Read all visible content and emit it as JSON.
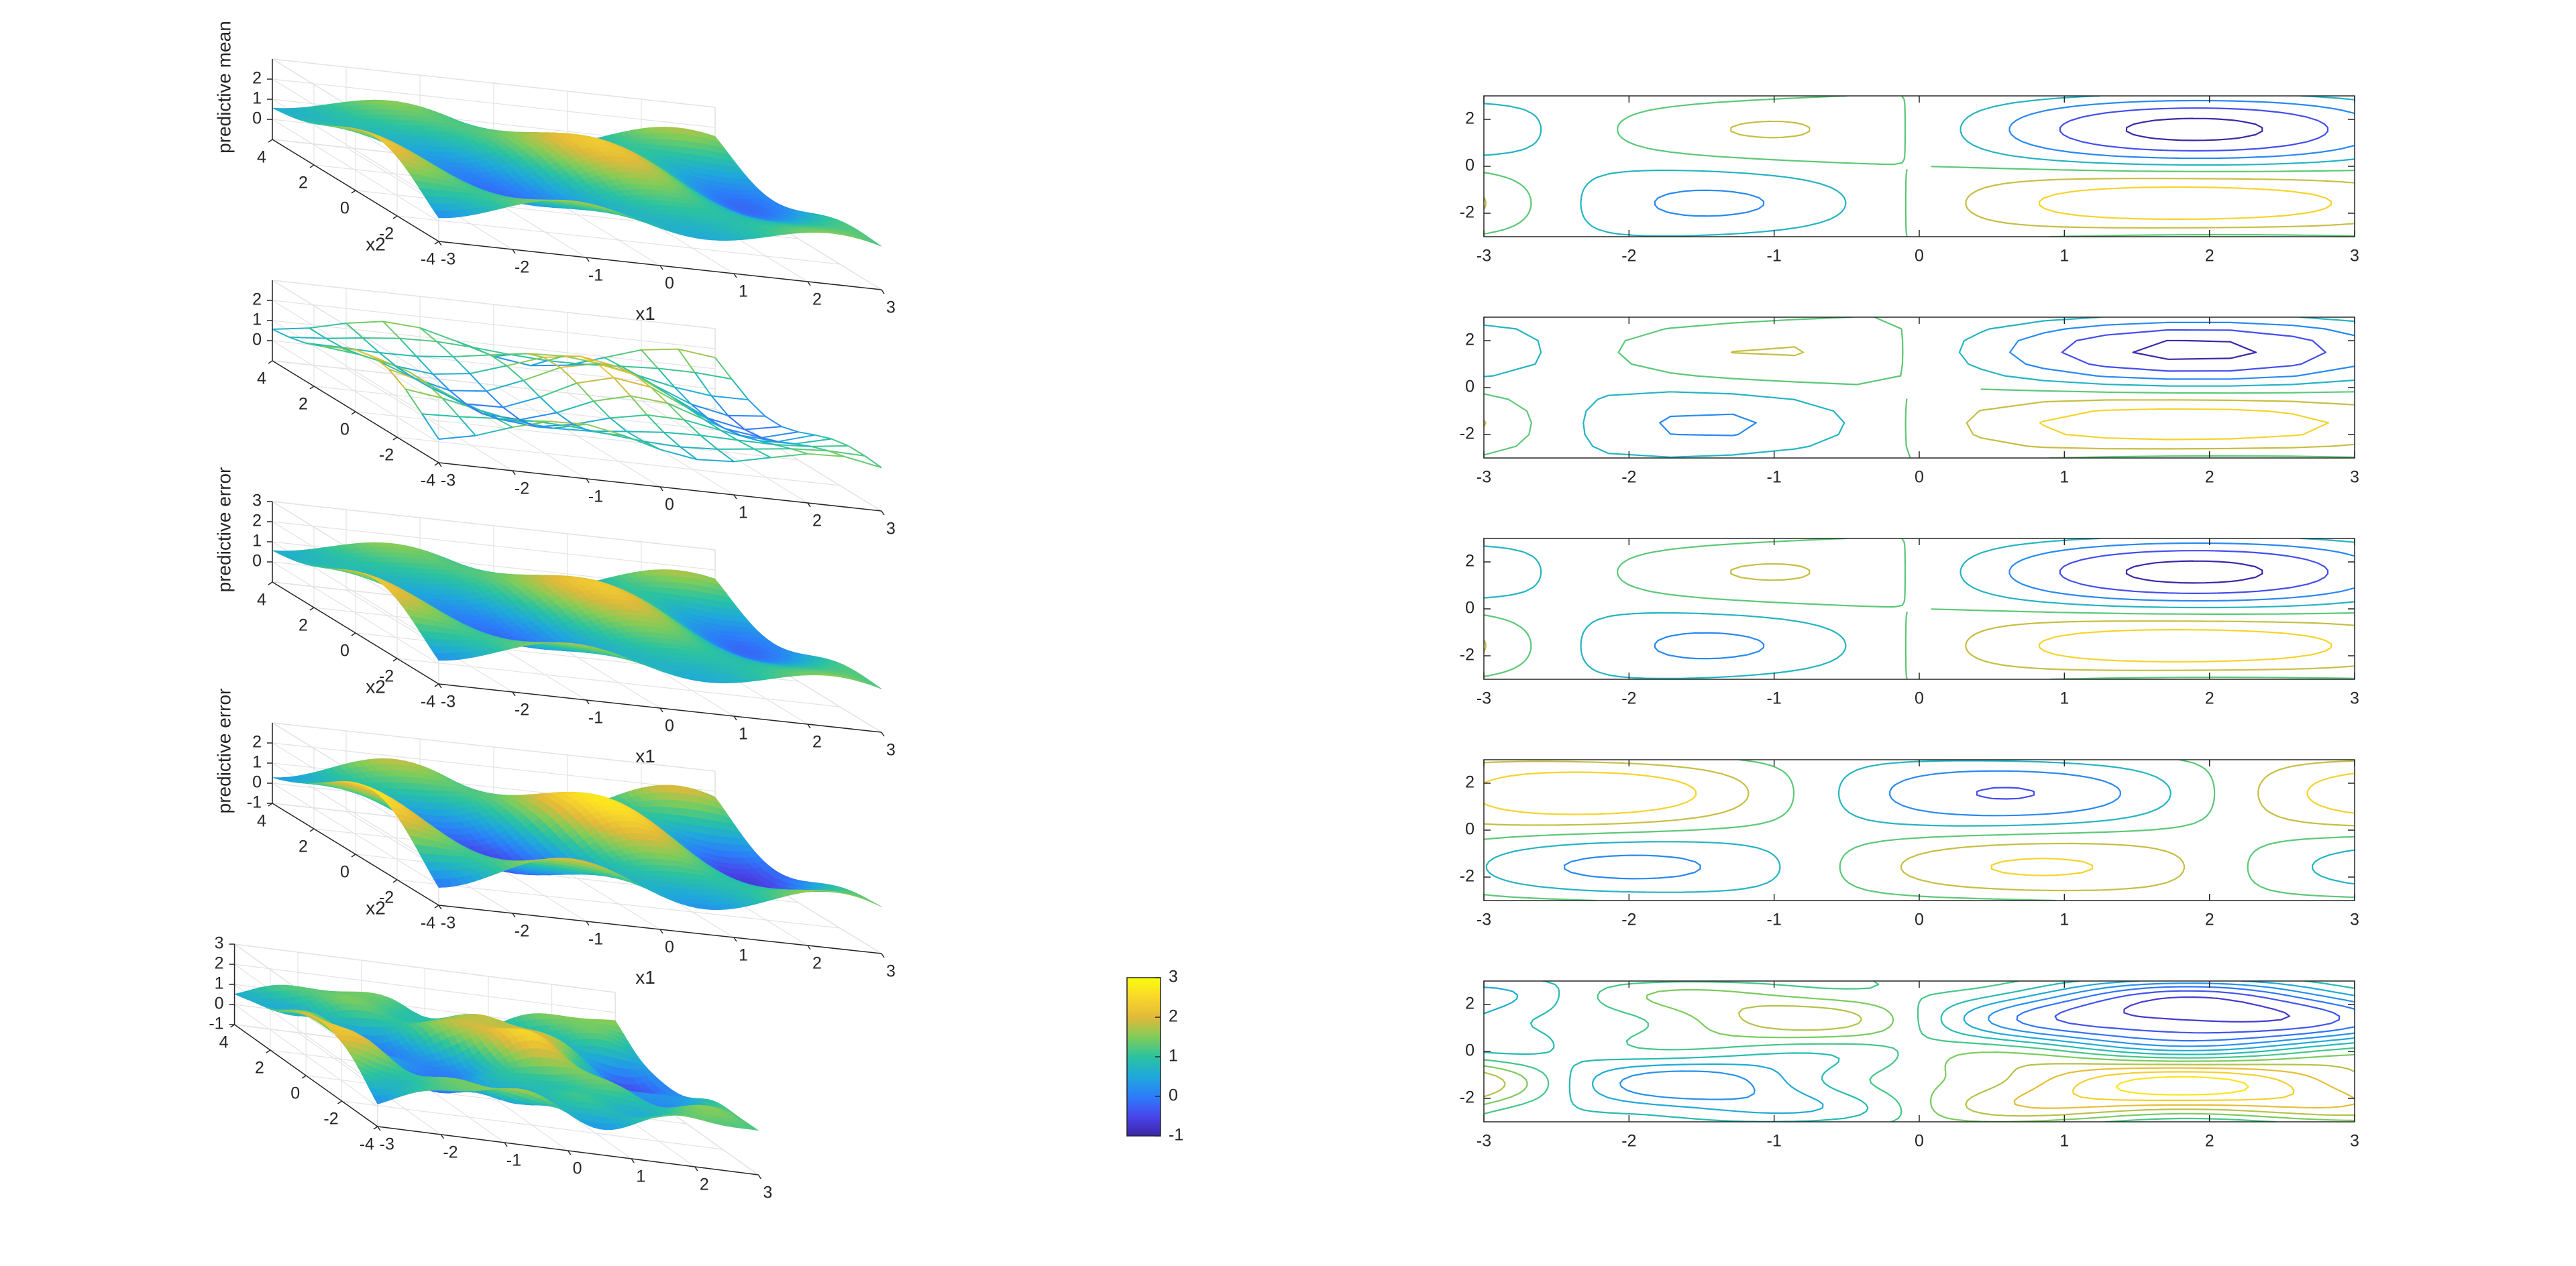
{
  "figure": {
    "colormap": [
      "#3E26A8",
      "#4746EB",
      "#2C7DFA",
      "#1FA8DB",
      "#2BC3A0",
      "#81CC59",
      "#E1B93A",
      "#FAD72A",
      "#F9FB0E"
    ]
  },
  "chart_data": [
    {
      "type": "surface3d",
      "xlabel": "x1",
      "ylabel": "x2",
      "zlabel": "predictive mean",
      "xticks": [
        "-3",
        "-2",
        "-1",
        "0",
        "1",
        "2",
        "3"
      ],
      "yticks": [
        "4",
        "2",
        "0",
        "-2",
        "-4"
      ],
      "zticks": [
        "2",
        "1",
        "0"
      ],
      "xlim": [
        -3,
        3
      ],
      "ylim": [
        -4,
        4
      ],
      "zlim": [
        -1,
        3
      ],
      "grid": true,
      "style": "dense-mesh"
    },
    {
      "type": "surface3d",
      "xlabel": "",
      "ylabel": "",
      "zlabel": "",
      "xticks": [
        "-3",
        "-2",
        "-1",
        "0",
        "1",
        "2",
        "3"
      ],
      "yticks": [
        "4",
        "2",
        "0",
        "-2",
        "-4"
      ],
      "zticks": [
        "2",
        "1",
        "0"
      ],
      "xlim": [
        -3,
        3
      ],
      "ylim": [
        -4,
        4
      ],
      "zlim": [
        -1,
        3
      ],
      "grid": true,
      "style": "coarse-mesh"
    },
    {
      "type": "surface3d",
      "xlabel": "x1",
      "ylabel": "x2",
      "zlabel": "predictive error",
      "xticks": [
        "-3",
        "-2",
        "-1",
        "0",
        "1",
        "2",
        "3"
      ],
      "yticks": [
        "4",
        "2",
        "0",
        "-2",
        "-4"
      ],
      "zticks": [
        "3",
        "2",
        "1",
        "0"
      ],
      "xlim": [
        -3,
        3
      ],
      "ylim": [
        -4,
        4
      ],
      "zlim": [
        -1,
        3
      ],
      "grid": true,
      "style": "dense-mesh"
    },
    {
      "type": "surface3d",
      "xlabel": "x1",
      "ylabel": "x2",
      "zlabel": "predictive error",
      "xticks": [
        "-3",
        "-2",
        "-1",
        "0",
        "1",
        "2",
        "3"
      ],
      "yticks": [
        "4",
        "2",
        "0",
        "-2",
        "-4"
      ],
      "zticks": [
        "2",
        "1",
        "0",
        "-1"
      ],
      "xlim": [
        -3,
        3
      ],
      "ylim": [
        -4,
        4
      ],
      "zlim": [
        -1,
        3
      ],
      "grid": true,
      "style": "dense-mesh-deep"
    },
    {
      "type": "surface3d",
      "xlabel": "",
      "ylabel": "",
      "zlabel": "",
      "xticks": [
        "-3",
        "-2",
        "-1",
        "0",
        "1",
        "2",
        "3"
      ],
      "yticks": [
        "4",
        "2",
        "0",
        "-2",
        "-4"
      ],
      "zticks": [
        "3",
        "2",
        "1",
        "0",
        "-1"
      ],
      "xlim": [
        -3,
        3
      ],
      "ylim": [
        -4,
        4
      ],
      "zlim": [
        -1,
        3
      ],
      "grid": true,
      "style": "dense-mesh-multi",
      "colorbar": {
        "ticks": [
          "3",
          "2",
          "1",
          "0",
          "-1"
        ],
        "range": [
          -1,
          3
        ]
      }
    },
    {
      "type": "contour",
      "xticks": [
        "-3",
        "-2",
        "-1",
        "0",
        "1",
        "2",
        "3"
      ],
      "yticks": [
        "2",
        "0",
        "-2"
      ],
      "xlim": [
        -3,
        3
      ],
      "ylim": [
        -3,
        3
      ],
      "levels": [
        -1,
        -0.5,
        0,
        0.5,
        1,
        1.5,
        2,
        2.5
      ],
      "style": "smooth"
    },
    {
      "type": "contour",
      "xticks": [
        "-3",
        "-2",
        "-1",
        "0",
        "1",
        "2",
        "3"
      ],
      "yticks": [
        "2",
        "0",
        "-2"
      ],
      "xlim": [
        -3,
        3
      ],
      "ylim": [
        -3,
        3
      ],
      "levels": [
        -1,
        -0.5,
        0,
        0.5,
        1,
        1.5,
        2,
        2.5
      ],
      "style": "coarse"
    },
    {
      "type": "contour",
      "xticks": [
        "-3",
        "-2",
        "-1",
        "0",
        "1",
        "2",
        "3"
      ],
      "yticks": [
        "2",
        "0",
        "-2"
      ],
      "xlim": [
        -3,
        3
      ],
      "ylim": [
        -3,
        3
      ],
      "levels": [
        -1,
        -0.5,
        0,
        0.5,
        1,
        1.5,
        2,
        2.5
      ],
      "style": "smooth"
    },
    {
      "type": "contour",
      "xticks": [
        "-3",
        "-2",
        "-1",
        "0",
        "1",
        "2",
        "3"
      ],
      "yticks": [
        "2",
        "0",
        "-2"
      ],
      "xlim": [
        -3,
        3
      ],
      "ylim": [
        -3,
        3
      ],
      "levels": [
        -1,
        -0.5,
        0,
        0.5,
        1,
        1.5,
        2,
        2.5
      ],
      "style": "inverted"
    },
    {
      "type": "contour",
      "xticks": [
        "-3",
        "-2",
        "-1",
        "0",
        "1",
        "2",
        "3"
      ],
      "yticks": [
        "2",
        "0",
        "-2"
      ],
      "xlim": [
        -3,
        3
      ],
      "ylim": [
        -3,
        3
      ],
      "levels": [
        -1,
        -0.5,
        0,
        0.5,
        1,
        1.5,
        2,
        2.5
      ],
      "style": "dense"
    }
  ]
}
